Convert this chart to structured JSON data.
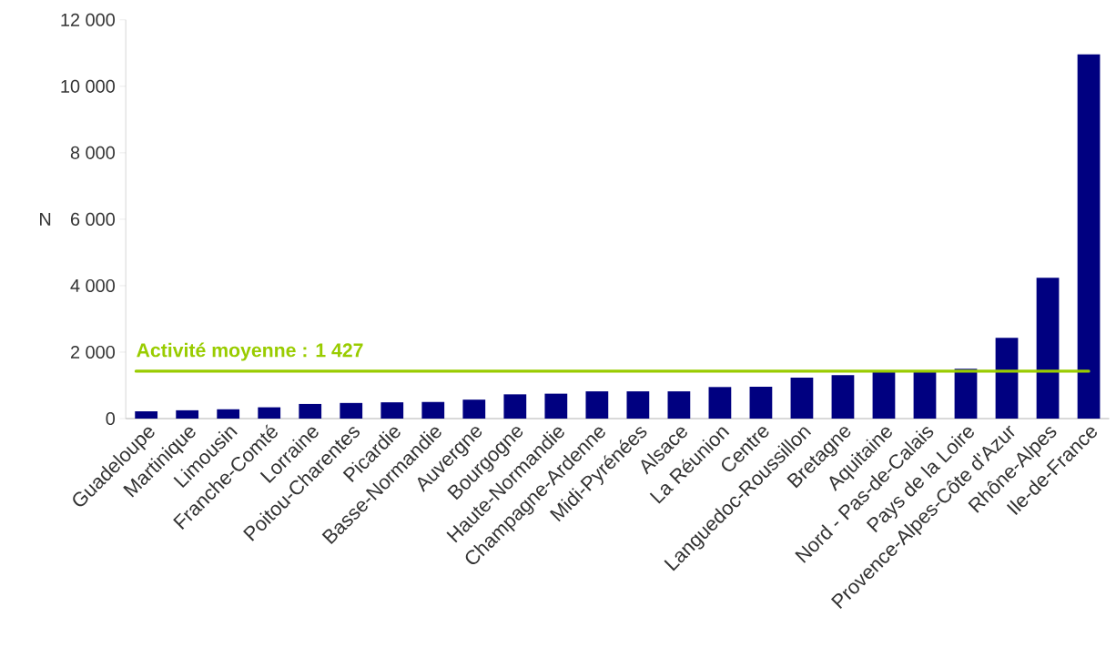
{
  "chart_data": {
    "type": "bar",
    "ylabel": "N",
    "categories": [
      "Guadeloupe",
      "Martinique",
      "Limousin",
      "Franche-Comté",
      "Lorraine",
      "Poitou-Charentes",
      "Picardie",
      "Basse-Normandie",
      "Auvergne",
      "Bourgogne",
      "Haute-Normandie",
      "Champagne-Ardenne",
      "Midi-Pyrénées",
      "Alsace",
      "La Réunion",
      "Centre",
      "Languedoc-Roussillon",
      "Bretagne",
      "Aquitaine",
      "Nord - Pas-de-Calais",
      "Pays de la Loire",
      "Provence-Alpes-Côte d'Azur",
      "Rhône-Alpes",
      "Ile-de-France"
    ],
    "values": [
      220,
      250,
      280,
      340,
      440,
      470,
      490,
      500,
      570,
      730,
      750,
      820,
      820,
      820,
      950,
      960,
      1230,
      1310,
      1400,
      1400,
      1500,
      2430,
      4240,
      10960
    ],
    "color": "#000080",
    "ylim": [
      0,
      12000
    ],
    "yticks": [
      0,
      {
        "value": 2000,
        "label": "2 000"
      },
      {
        "value": 4000,
        "label": "4 000"
      },
      {
        "value": 6000,
        "label": "6 000"
      },
      {
        "value": 8000,
        "label": "8 000"
      },
      {
        "value": 10000,
        "label": "10 000"
      },
      {
        "value": 12000,
        "label": "12 000"
      }
    ],
    "ref_lines": [
      {
        "axis": "y",
        "value": 1427,
        "label": "**Activité moyenne : 1 427**",
        "color": "#99cc00"
      }
    ],
    "grid": false
  }
}
